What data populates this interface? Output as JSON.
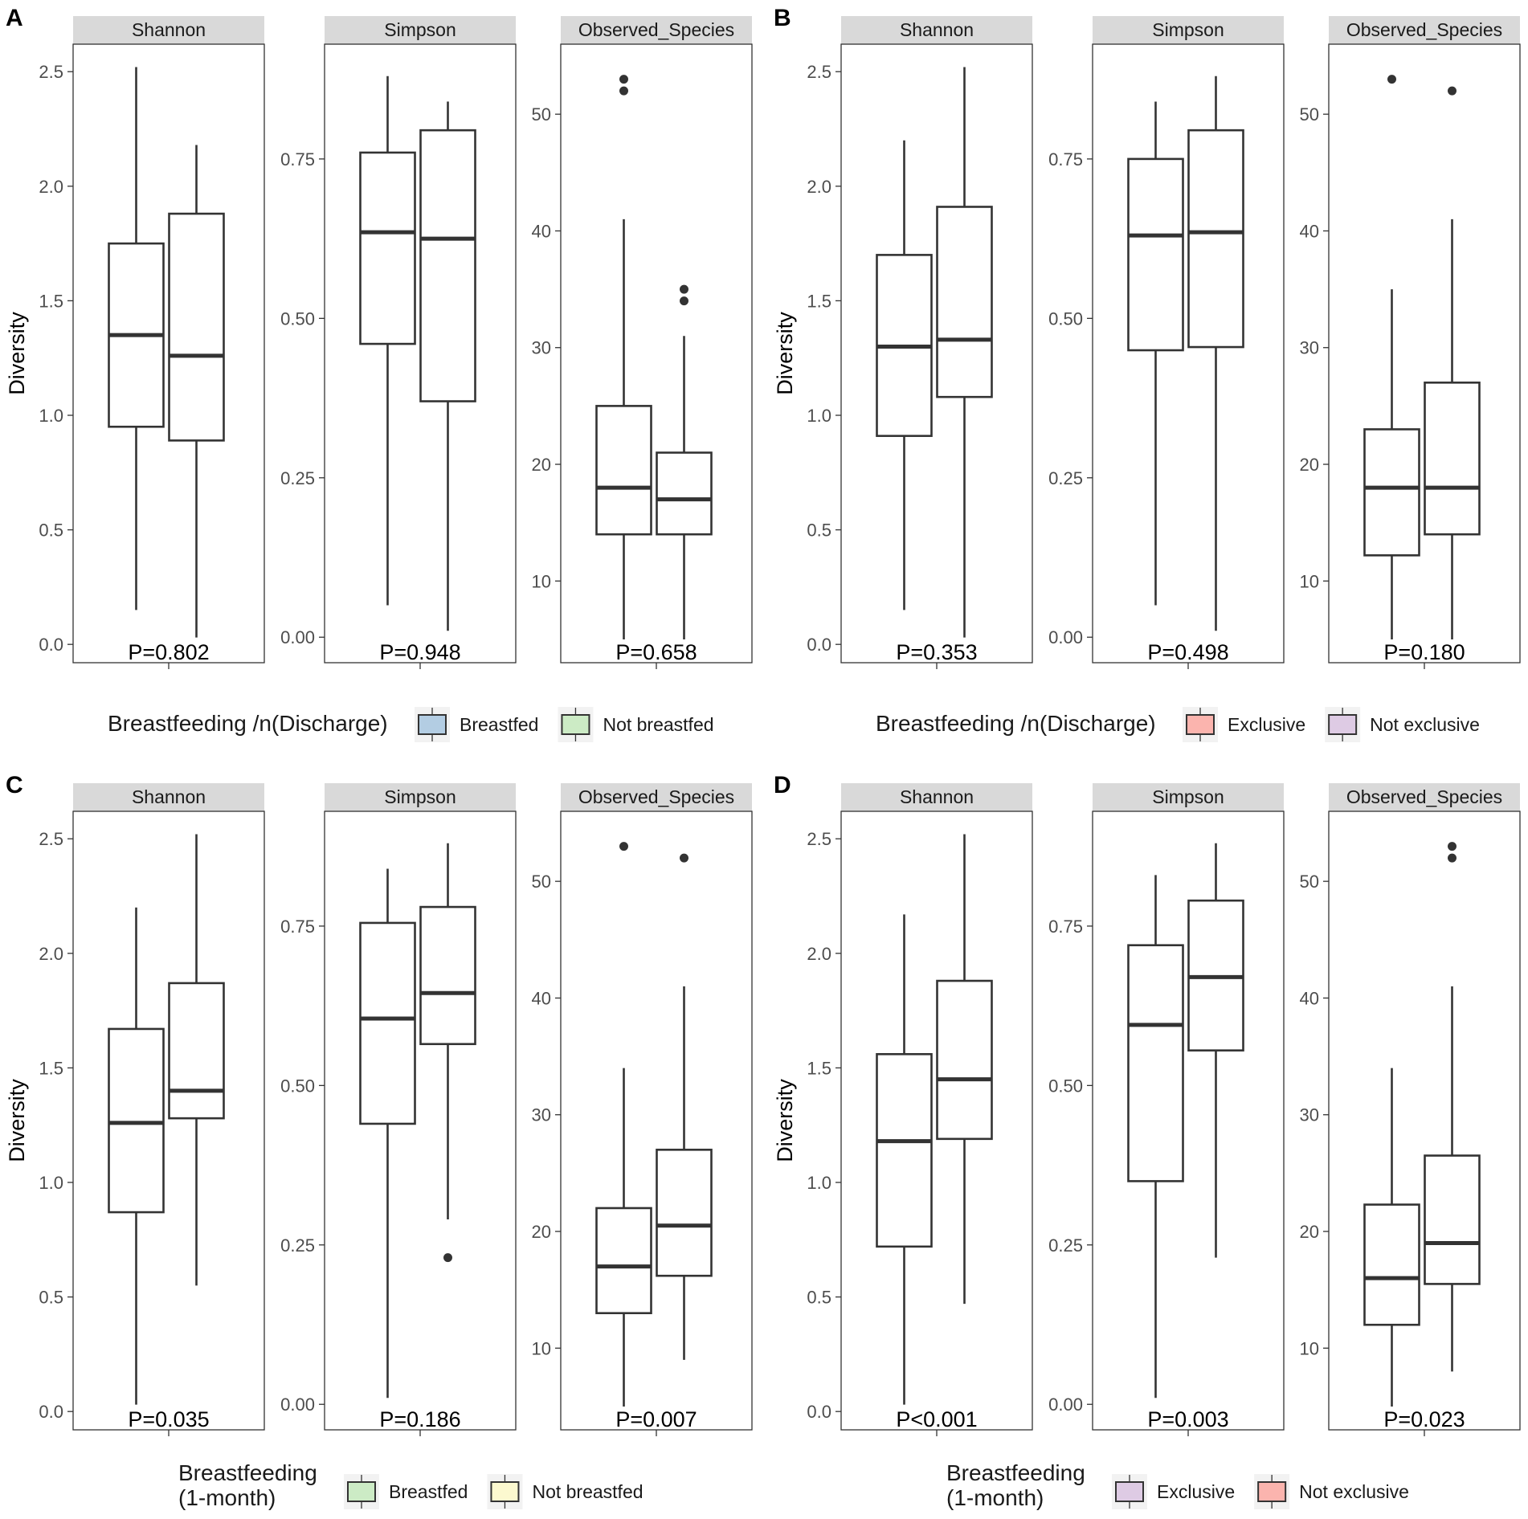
{
  "figure": {
    "y_axis_label": "Diversity",
    "legend_key_bg": "#f2f2f2"
  },
  "chart_data": [
    {
      "type": "box",
      "panel_letter": "A",
      "legend": {
        "title": [
          "Breastfeeding /n(Discharge)"
        ],
        "entries": [
          {
            "label": "Breastfed",
            "color": "#b3cde3"
          },
          {
            "label": "Not breastfed",
            "color": "#ccebc5"
          }
        ]
      },
      "facets": [
        {
          "title": "Shannon",
          "p_value": "P=0.802",
          "ylim": [
            -0.08,
            2.62
          ],
          "ticks": [
            0.0,
            0.5,
            1.0,
            1.5,
            2.0,
            2.5
          ],
          "tick_labels": [
            "0.0",
            "0.5",
            "1.0",
            "1.5",
            "2.0",
            "2.5"
          ],
          "boxes": [
            {
              "group": "Breastfed",
              "whisker_low": 0.15,
              "q1": 0.95,
              "median": 1.35,
              "q3": 1.75,
              "whisker_high": 2.52,
              "outliers": []
            },
            {
              "group": "Not breastfed",
              "whisker_low": 0.03,
              "q1": 0.89,
              "median": 1.26,
              "q3": 1.88,
              "whisker_high": 2.18,
              "outliers": []
            }
          ]
        },
        {
          "title": "Simpson",
          "p_value": "P=0.948",
          "ylim": [
            -0.04,
            0.93
          ],
          "ticks": [
            0.0,
            0.25,
            0.5,
            0.75
          ],
          "tick_labels": [
            "0.00",
            "0.25",
            "0.50",
            "0.75"
          ],
          "boxes": [
            {
              "group": "Breastfed",
              "whisker_low": 0.05,
              "q1": 0.46,
              "median": 0.635,
              "q3": 0.76,
              "whisker_high": 0.88,
              "outliers": []
            },
            {
              "group": "Not breastfed",
              "whisker_low": 0.01,
              "q1": 0.37,
              "median": 0.625,
              "q3": 0.795,
              "whisker_high": 0.84,
              "outliers": []
            }
          ]
        },
        {
          "title": "Observed_Species",
          "p_value": "P=0.658",
          "ylim": [
            3,
            56
          ],
          "ticks": [
            10,
            20,
            30,
            40,
            50
          ],
          "tick_labels": [
            "10",
            "20",
            "30",
            "40",
            "50"
          ],
          "boxes": [
            {
              "group": "Breastfed",
              "whisker_low": 5,
              "q1": 14,
              "median": 18,
              "q3": 25,
              "whisker_high": 41,
              "outliers": [
                52,
                53
              ]
            },
            {
              "group": "Not breastfed",
              "whisker_low": 5,
              "q1": 14,
              "median": 17,
              "q3": 21,
              "whisker_high": 31,
              "outliers": [
                34,
                35
              ]
            }
          ]
        }
      ]
    },
    {
      "type": "box",
      "panel_letter": "B",
      "legend": {
        "title": [
          "Breastfeeding /n(Discharge)"
        ],
        "entries": [
          {
            "label": "Exclusive",
            "color": "#fbb4ae"
          },
          {
            "label": "Not exclusive",
            "color": "#decbe4"
          }
        ]
      },
      "facets": [
        {
          "title": "Shannon",
          "p_value": "P=0.353",
          "ylim": [
            -0.08,
            2.62
          ],
          "ticks": [
            0.0,
            0.5,
            1.0,
            1.5,
            2.0,
            2.5
          ],
          "tick_labels": [
            "0.0",
            "0.5",
            "1.0",
            "1.5",
            "2.0",
            "2.5"
          ],
          "boxes": [
            {
              "group": "Exclusive",
              "whisker_low": 0.15,
              "q1": 0.91,
              "median": 1.3,
              "q3": 1.7,
              "whisker_high": 2.2,
              "outliers": []
            },
            {
              "group": "Not exclusive",
              "whisker_low": 0.03,
              "q1": 1.08,
              "median": 1.33,
              "q3": 1.91,
              "whisker_high": 2.52,
              "outliers": []
            }
          ]
        },
        {
          "title": "Simpson",
          "p_value": "P=0.498",
          "ylim": [
            -0.04,
            0.93
          ],
          "ticks": [
            0.0,
            0.25,
            0.5,
            0.75
          ],
          "tick_labels": [
            "0.00",
            "0.25",
            "0.50",
            "0.75"
          ],
          "boxes": [
            {
              "group": "Exclusive",
              "whisker_low": 0.05,
              "q1": 0.45,
              "median": 0.63,
              "q3": 0.75,
              "whisker_high": 0.84,
              "outliers": []
            },
            {
              "group": "Not exclusive",
              "whisker_low": 0.01,
              "q1": 0.455,
              "median": 0.635,
              "q3": 0.795,
              "whisker_high": 0.88,
              "outliers": []
            }
          ]
        },
        {
          "title": "Observed_Species",
          "p_value": "P=0.180",
          "ylim": [
            3,
            56
          ],
          "ticks": [
            10,
            20,
            30,
            40,
            50
          ],
          "tick_labels": [
            "10",
            "20",
            "30",
            "40",
            "50"
          ],
          "boxes": [
            {
              "group": "Exclusive",
              "whisker_low": 5,
              "q1": 12.2,
              "median": 18,
              "q3": 23,
              "whisker_high": 35,
              "outliers": [
                53
              ]
            },
            {
              "group": "Not exclusive",
              "whisker_low": 5,
              "q1": 14,
              "median": 18,
              "q3": 27,
              "whisker_high": 41,
              "outliers": [
                52
              ]
            }
          ]
        }
      ]
    },
    {
      "type": "box",
      "panel_letter": "C",
      "legend": {
        "title": [
          "Breastfeeding",
          "(1-month)"
        ],
        "entries": [
          {
            "label": "Breastfed",
            "color": "#ccebc5"
          },
          {
            "label": "Not breastfed",
            "color": "#fcf9cf"
          }
        ]
      },
      "facets": [
        {
          "title": "Shannon",
          "p_value": "P=0.035",
          "ylim": [
            -0.08,
            2.62
          ],
          "ticks": [
            0.0,
            0.5,
            1.0,
            1.5,
            2.0,
            2.5
          ],
          "tick_labels": [
            "0.0",
            "0.5",
            "1.0",
            "1.5",
            "2.0",
            "2.5"
          ],
          "boxes": [
            {
              "group": "Breastfed",
              "whisker_low": 0.03,
              "q1": 0.87,
              "median": 1.26,
              "q3": 1.67,
              "whisker_high": 2.2,
              "outliers": []
            },
            {
              "group": "Not breastfed",
              "whisker_low": 0.55,
              "q1": 1.28,
              "median": 1.4,
              "q3": 1.87,
              "whisker_high": 2.52,
              "outliers": []
            }
          ]
        },
        {
          "title": "Simpson",
          "p_value": "P=0.186",
          "ylim": [
            -0.04,
            0.93
          ],
          "ticks": [
            0.0,
            0.25,
            0.5,
            0.75
          ],
          "tick_labels": [
            "0.00",
            "0.25",
            "0.50",
            "0.75"
          ],
          "boxes": [
            {
              "group": "Breastfed",
              "whisker_low": 0.01,
              "q1": 0.44,
              "median": 0.605,
              "q3": 0.755,
              "whisker_high": 0.84,
              "outliers": []
            },
            {
              "group": "Not breastfed",
              "whisker_low": 0.29,
              "q1": 0.565,
              "median": 0.645,
              "q3": 0.78,
              "whisker_high": 0.88,
              "outliers": [
                0.23
              ]
            }
          ]
        },
        {
          "title": "Observed_Species",
          "p_value": "P=0.007",
          "ylim": [
            3,
            56
          ],
          "ticks": [
            10,
            20,
            30,
            40,
            50
          ],
          "tick_labels": [
            "10",
            "20",
            "30",
            "40",
            "50"
          ],
          "boxes": [
            {
              "group": "Breastfed",
              "whisker_low": 5,
              "q1": 13,
              "median": 17,
              "q3": 22,
              "whisker_high": 34,
              "outliers": [
                53
              ]
            },
            {
              "group": "Not breastfed",
              "whisker_low": 9,
              "q1": 16.2,
              "median": 20.5,
              "q3": 27,
              "whisker_high": 41,
              "outliers": [
                52
              ]
            }
          ]
        }
      ]
    },
    {
      "type": "box",
      "panel_letter": "D",
      "legend": {
        "title": [
          "Breastfeeding",
          "(1-month)"
        ],
        "entries": [
          {
            "label": "Exclusive",
            "color": "#decbe4"
          },
          {
            "label": "Not exclusive",
            "color": "#fbb4ae"
          }
        ]
      },
      "facets": [
        {
          "title": "Shannon",
          "p_value": "P<0.001",
          "ylim": [
            -0.08,
            2.62
          ],
          "ticks": [
            0.0,
            0.5,
            1.0,
            1.5,
            2.0,
            2.5
          ],
          "tick_labels": [
            "0.0",
            "0.5",
            "1.0",
            "1.5",
            "2.0",
            "2.5"
          ],
          "boxes": [
            {
              "group": "Exclusive",
              "whisker_low": 0.03,
              "q1": 0.72,
              "median": 1.18,
              "q3": 1.56,
              "whisker_high": 2.17,
              "outliers": []
            },
            {
              "group": "Not exclusive",
              "whisker_low": 0.47,
              "q1": 1.19,
              "median": 1.45,
              "q3": 1.88,
              "whisker_high": 2.52,
              "outliers": []
            }
          ]
        },
        {
          "title": "Simpson",
          "p_value": "P=0.003",
          "ylim": [
            -0.04,
            0.93
          ],
          "ticks": [
            0.0,
            0.25,
            0.5,
            0.75
          ],
          "tick_labels": [
            "0.00",
            "0.25",
            "0.50",
            "0.75"
          ],
          "boxes": [
            {
              "group": "Exclusive",
              "whisker_low": 0.01,
              "q1": 0.35,
              "median": 0.595,
              "q3": 0.72,
              "whisker_high": 0.83,
              "outliers": []
            },
            {
              "group": "Not exclusive",
              "whisker_low": 0.23,
              "q1": 0.555,
              "median": 0.67,
              "q3": 0.79,
              "whisker_high": 0.88,
              "outliers": []
            }
          ]
        },
        {
          "title": "Observed_Species",
          "p_value": "P=0.023",
          "ylim": [
            3,
            56
          ],
          "ticks": [
            10,
            20,
            30,
            40,
            50
          ],
          "tick_labels": [
            "10",
            "20",
            "30",
            "40",
            "50"
          ],
          "boxes": [
            {
              "group": "Exclusive",
              "whisker_low": 5,
              "q1": 12,
              "median": 16,
              "q3": 22.3,
              "whisker_high": 34,
              "outliers": []
            },
            {
              "group": "Not exclusive",
              "whisker_low": 8,
              "q1": 15.5,
              "median": 19,
              "q3": 26.5,
              "whisker_high": 41,
              "outliers": [
                52,
                53
              ]
            }
          ]
        }
      ]
    }
  ]
}
